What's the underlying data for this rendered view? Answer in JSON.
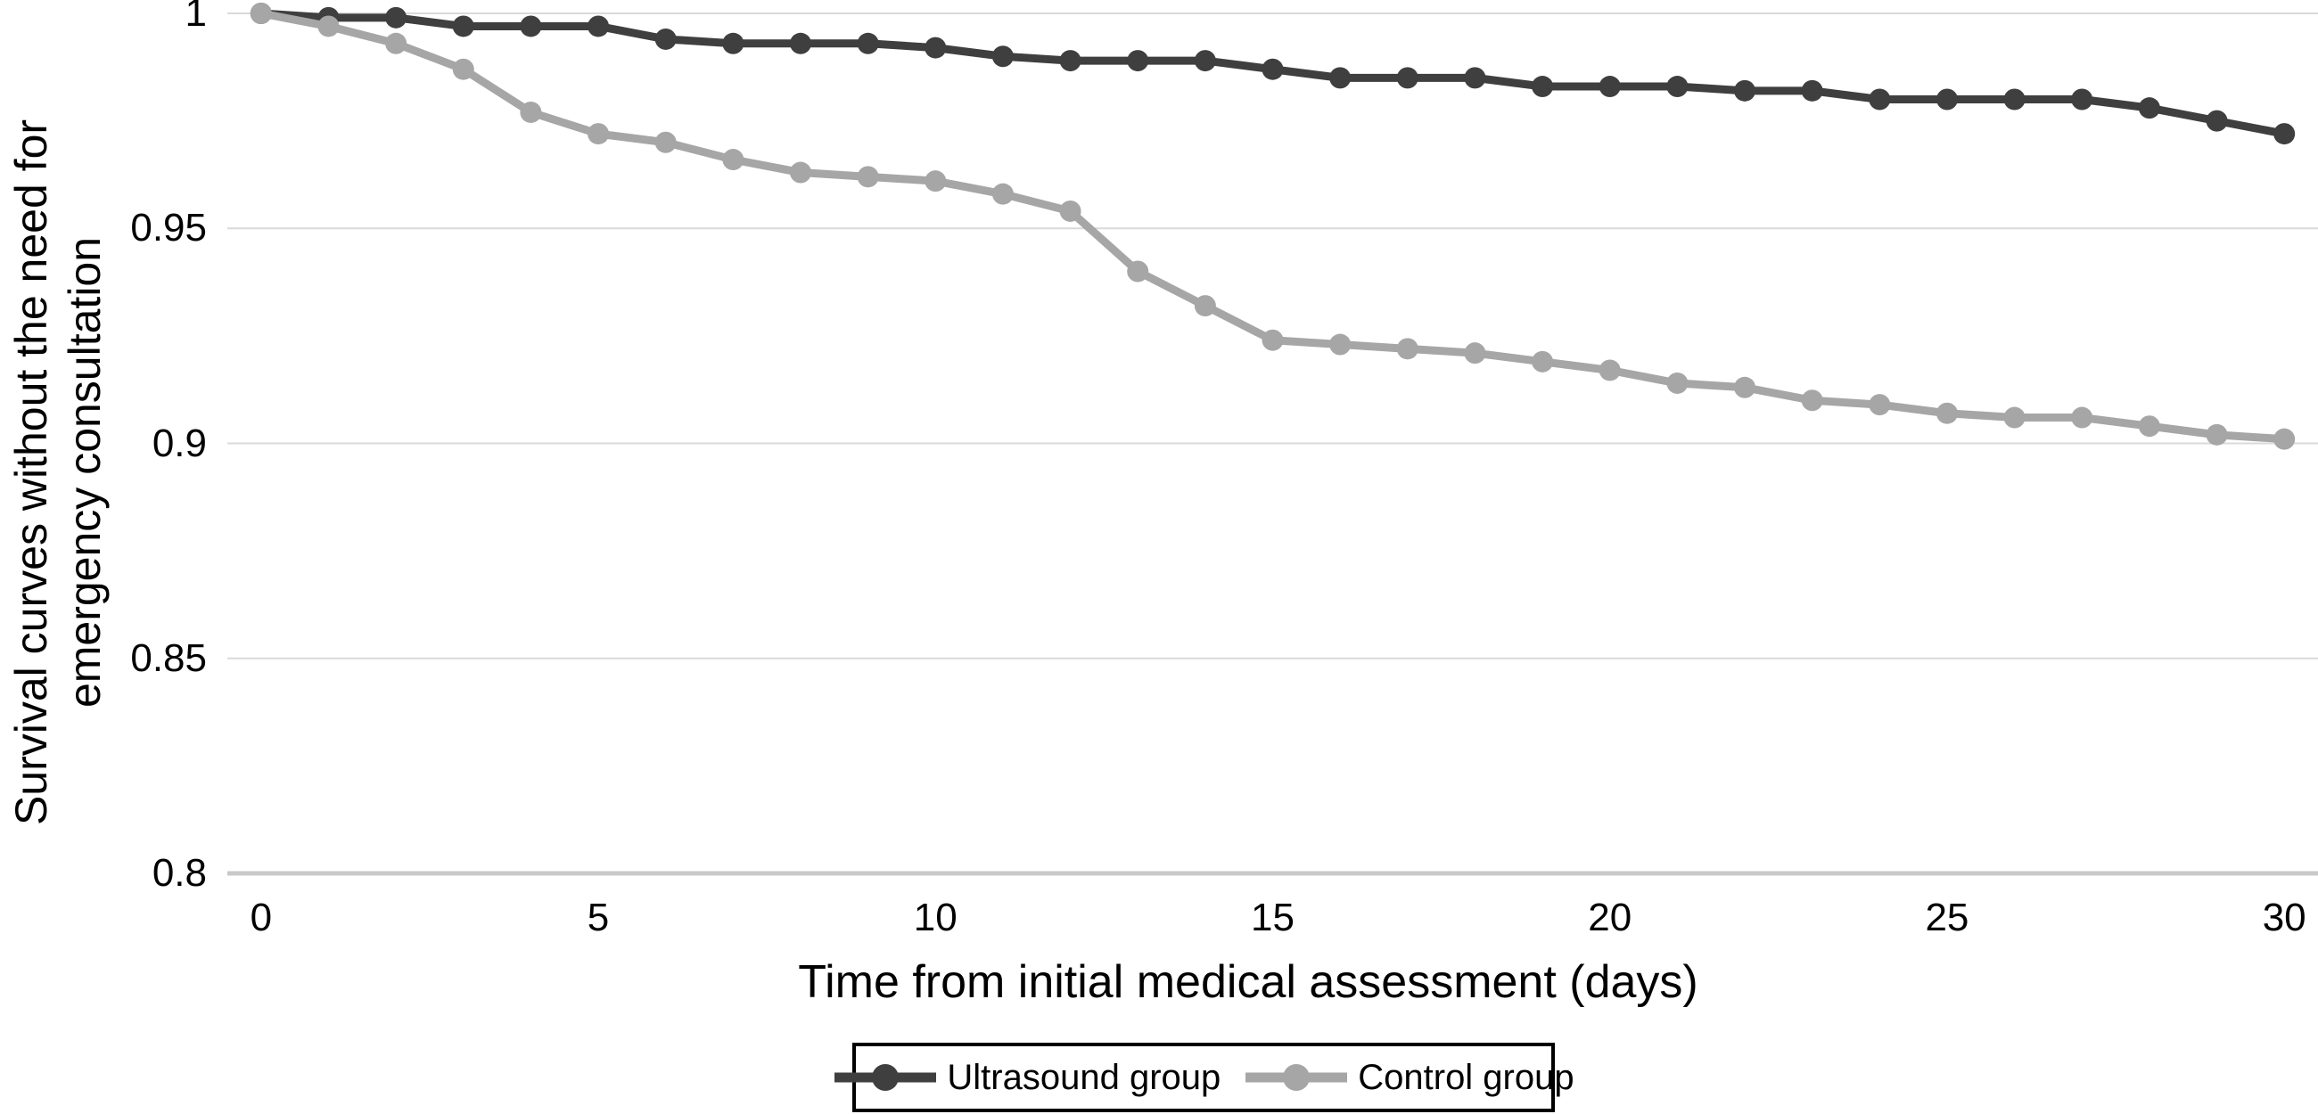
{
  "chart_data": {
    "type": "line",
    "title": "",
    "xlabel": "Time from initial medical assessment (days)",
    "ylabel": "Survival curves without the need for emergency consultation",
    "ylabel_lines": [
      "Survival curves without the need for",
      "emergency consultation"
    ],
    "ylim": [
      0.8,
      1.0
    ],
    "yticks": [
      1,
      0.95,
      0.9,
      0.85,
      0.8
    ],
    "ytick_labels": [
      "1",
      "0.95",
      "0.9",
      "0.85",
      "0.8"
    ],
    "xticks": [
      0,
      5,
      10,
      15,
      20,
      25,
      30
    ],
    "xtick_labels": [
      "0",
      "5",
      "10",
      "15",
      "20",
      "25",
      "30"
    ],
    "x": [
      0,
      1,
      2,
      3,
      4,
      5,
      6,
      7,
      8,
      9,
      10,
      11,
      12,
      13,
      14,
      15,
      16,
      17,
      18,
      19,
      20,
      21,
      22,
      23,
      24,
      25,
      26,
      27,
      28,
      29,
      30
    ],
    "series": [
      {
        "name": "Ultrasound group",
        "color": "#3f3f3f",
        "values": [
          1.0,
          0.999,
          0.999,
          0.997,
          0.997,
          0.997,
          0.994,
          0.993,
          0.993,
          0.993,
          0.992,
          0.99,
          0.989,
          0.989,
          0.989,
          0.987,
          0.985,
          0.985,
          0.985,
          0.983,
          0.983,
          0.983,
          0.982,
          0.982,
          0.98,
          0.98,
          0.98,
          0.98,
          0.978,
          0.975,
          0.972
        ]
      },
      {
        "name": "Control group",
        "color": "#a6a6a6",
        "values": [
          1.0,
          0.997,
          0.993,
          0.987,
          0.977,
          0.972,
          0.97,
          0.966,
          0.963,
          0.962,
          0.961,
          0.958,
          0.954,
          0.94,
          0.932,
          0.924,
          0.923,
          0.922,
          0.921,
          0.919,
          0.917,
          0.914,
          0.913,
          0.91,
          0.909,
          0.907,
          0.906,
          0.906,
          0.904,
          0.902,
          0.901
        ]
      }
    ],
    "grid": "horizontal",
    "gridline_color": "#d9d9d9",
    "baseline_color": "#c9c9c9",
    "legend_position": "bottom",
    "legend": [
      "Ultrasound group",
      "Control group"
    ]
  }
}
